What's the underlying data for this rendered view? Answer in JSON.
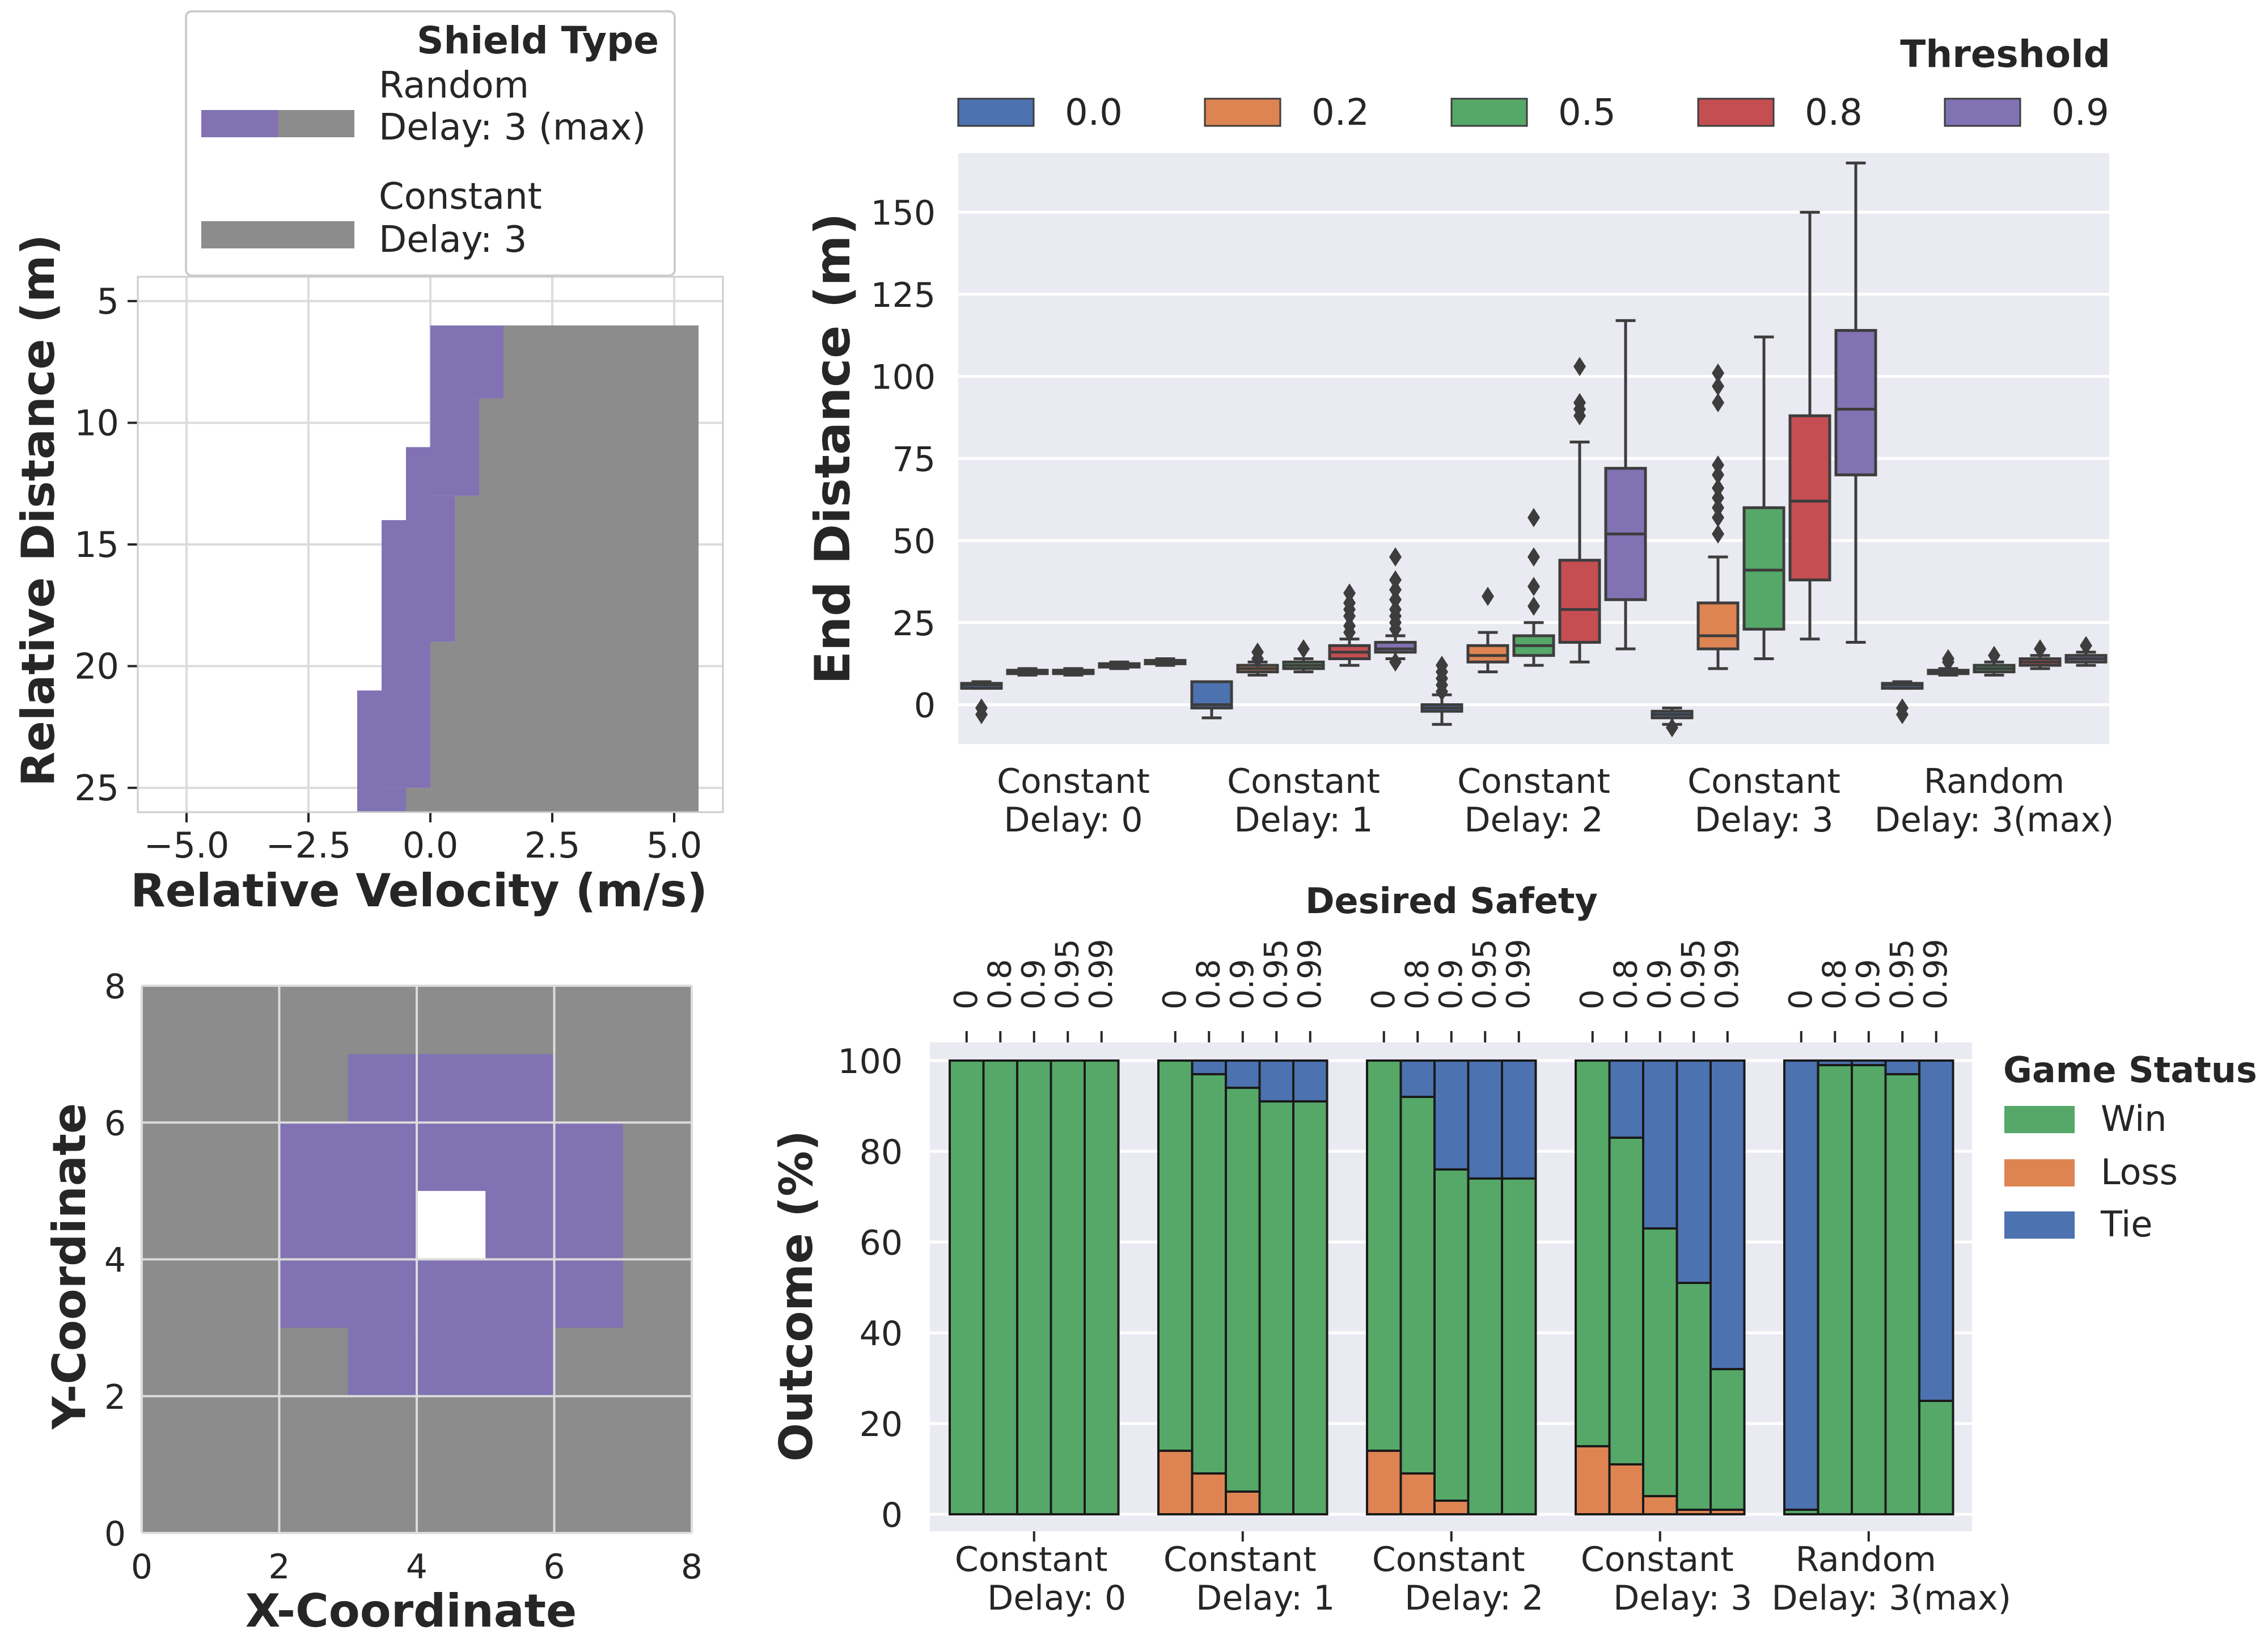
{
  "chart_data": [
    {
      "type": "heatmap",
      "subtype": "shield-region",
      "xlabel": "Relative Velocity (m/s)",
      "ylabel": "Relative Distance (m)",
      "xlim": [
        -6,
        6
      ],
      "ylim": [
        26,
        4
      ],
      "xticks": [
        -5.0,
        -2.5,
        0.0,
        2.5,
        5.0
      ],
      "xtick_labels": [
        "−5.0",
        "−2.5",
        "0.0",
        "2.5",
        "5.0"
      ],
      "yticks": [
        5,
        10,
        15,
        20,
        25
      ],
      "yticks_labels": [
        "5",
        "10",
        "15",
        "20",
        "25"
      ],
      "grid": true,
      "legend": {
        "title": "Shield Type",
        "placement": "above",
        "entries": [
          {
            "line1": "Random",
            "line2": "Delay: 3 (max)",
            "colors": [
              "#8172b3",
              "#8c8c8c"
            ]
          },
          {
            "line1": "Constant",
            "line2": "Delay: 3",
            "colors": [
              "#8c8c8c",
              "#8c8c8c"
            ]
          }
        ]
      },
      "regions": {
        "grey": [
          {
            "x": [
              1.5,
              5.5
            ],
            "y": [
              6,
              26
            ]
          },
          {
            "x": [
              1.0,
              1.5
            ],
            "y": [
              9,
              26
            ]
          },
          {
            "x": [
              0.5,
              1.0
            ],
            "y": [
              13,
              26
            ]
          },
          {
            "x": [
              0.0,
              0.5
            ],
            "y": [
              19,
              26
            ]
          },
          {
            "x": [
              -0.5,
              0.0
            ],
            "y": [
              25,
              26
            ]
          }
        ],
        "purple": [
          {
            "x": [
              0.0,
              1.5
            ],
            "y": [
              6,
              9
            ]
          },
          {
            "x": [
              0.0,
              1.0
            ],
            "y": [
              9,
              13
            ]
          },
          {
            "x": [
              0.0,
              0.5
            ],
            "y": [
              13,
              19
            ]
          },
          {
            "x": [
              -0.5,
              0.0
            ],
            "y": [
              11,
              25
            ]
          },
          {
            "x": [
              -1.0,
              -0.5
            ],
            "y": [
              14,
              25
            ]
          },
          {
            "x": [
              -1.5,
              -1.0
            ],
            "y": [
              21,
              26
            ]
          },
          {
            "x": [
              -1.0,
              -0.5
            ],
            "y": [
              25,
              26
            ]
          }
        ]
      }
    },
    {
      "type": "box",
      "ylabel": "End Distance (m)",
      "ylim": [
        -12,
        168
      ],
      "yticks": [
        0,
        25,
        50,
        75,
        100,
        125,
        150
      ],
      "categories": [
        {
          "line1": "Constant",
          "line2": "Delay: 0"
        },
        {
          "line1": "Constant",
          "line2": "Delay: 1"
        },
        {
          "line1": "Constant",
          "line2": "Delay: 2"
        },
        {
          "line1": "Constant",
          "line2": "Delay: 3"
        },
        {
          "line1": "Random",
          "line2": "Delay: 3(max)"
        }
      ],
      "legend": {
        "title": "Threshold",
        "placement": "top"
      },
      "series": [
        {
          "name": "0.0",
          "color": "#4c72b0",
          "boxes": [
            {
              "lo": 5,
              "q1": 5,
              "med": 6,
              "q3": 6.5,
              "hi": 7,
              "out": [
                -1,
                -3
              ]
            },
            {
              "lo": -4,
              "q1": -1,
              "med": 0,
              "q3": 7,
              "hi": 7,
              "out": []
            },
            {
              "lo": -6,
              "q1": -2,
              "med": -1,
              "q3": 0,
              "hi": 3,
              "out": [
                4,
                6,
                8,
                10,
                12
              ]
            },
            {
              "lo": -6,
              "q1": -4,
              "med": -3,
              "q3": -2,
              "hi": -1,
              "out": [
                -7
              ]
            },
            {
              "lo": 5,
              "q1": 5,
              "med": 6,
              "q3": 6.5,
              "hi": 7,
              "out": [
                -1,
                -3
              ]
            }
          ]
        },
        {
          "name": "0.2",
          "color": "#dd8452",
          "boxes": [
            {
              "lo": 9,
              "q1": 9.5,
              "med": 10,
              "q3": 10.5,
              "hi": 11,
              "out": []
            },
            {
              "lo": 9,
              "q1": 10,
              "med": 11,
              "q3": 12,
              "hi": 13,
              "out": [
                14,
                16
              ]
            },
            {
              "lo": 10,
              "q1": 13,
              "med": 15,
              "q3": 18,
              "hi": 22,
              "out": [
                33
              ]
            },
            {
              "lo": 11,
              "q1": 17,
              "med": 21,
              "q3": 31,
              "hi": 45,
              "out": [
                52,
                57,
                60,
                63,
                66,
                70,
                73,
                92,
                97,
                101
              ]
            },
            {
              "lo": 9,
              "q1": 9.5,
              "med": 10,
              "q3": 10.5,
              "hi": 11,
              "out": [
                13,
                14
              ]
            }
          ]
        },
        {
          "name": "0.5",
          "color": "#55a868",
          "boxes": [
            {
              "lo": 9,
              "q1": 9.5,
              "med": 10,
              "q3": 10.5,
              "hi": 11,
              "out": []
            },
            {
              "lo": 10,
              "q1": 11,
              "med": 12,
              "q3": 13,
              "hi": 14,
              "out": [
                17
              ]
            },
            {
              "lo": 12,
              "q1": 15,
              "med": 18,
              "q3": 21,
              "hi": 25,
              "out": [
                30,
                36,
                45,
                57
              ]
            },
            {
              "lo": 14,
              "q1": 23,
              "med": 41,
              "q3": 60,
              "hi": 112,
              "out": []
            },
            {
              "lo": 9,
              "q1": 10,
              "med": 11,
              "q3": 12,
              "hi": 13,
              "out": [
                15
              ]
            }
          ]
        },
        {
          "name": "0.8",
          "color": "#c44e52",
          "boxes": [
            {
              "lo": 11,
              "q1": 11.5,
              "med": 12,
              "q3": 12.5,
              "hi": 13,
              "out": []
            },
            {
              "lo": 12,
              "q1": 14,
              "med": 16,
              "q3": 18,
              "hi": 20,
              "out": [
                22,
                24,
                27,
                29,
                31,
                34
              ]
            },
            {
              "lo": 13,
              "q1": 19,
              "med": 29,
              "q3": 44,
              "hi": 80,
              "out": [
                88,
                90,
                92,
                103
              ]
            },
            {
              "lo": 20,
              "q1": 38,
              "med": 62,
              "q3": 88,
              "hi": 150,
              "out": []
            },
            {
              "lo": 11,
              "q1": 12,
              "med": 13,
              "q3": 14,
              "hi": 15,
              "out": [
                17
              ]
            }
          ]
        },
        {
          "name": "0.9",
          "color": "#8172b3",
          "boxes": [
            {
              "lo": 12,
              "q1": 12.5,
              "med": 13,
              "q3": 13.5,
              "hi": 14,
              "out": []
            },
            {
              "lo": 14,
              "q1": 16,
              "med": 17,
              "q3": 19,
              "hi": 21,
              "out": [
                13,
                23,
                25,
                27,
                29,
                32,
                35,
                38,
                45
              ]
            },
            {
              "lo": 17,
              "q1": 32,
              "med": 52,
              "q3": 72,
              "hi": 117,
              "out": []
            },
            {
              "lo": 19,
              "q1": 70,
              "med": 90,
              "q3": 114,
              "hi": 165,
              "out": []
            },
            {
              "lo": 12,
              "q1": 13,
              "med": 14,
              "q3": 15,
              "hi": 16,
              "out": [
                18
              ]
            }
          ]
        }
      ]
    },
    {
      "type": "heatmap",
      "subtype": "grid-region",
      "xlabel": "X-Coordinate",
      "ylabel": "Y-Coordinate",
      "xlim": [
        0,
        8
      ],
      "ylim": [
        0,
        8
      ],
      "xticks": [
        0,
        2,
        4,
        6,
        8
      ],
      "yticks": [
        0,
        2,
        4,
        6,
        8
      ],
      "grid": true,
      "cells": {
        "purple": [
          {
            "x": [
              3,
              6
            ],
            "y": [
              6,
              7
            ]
          },
          {
            "x": [
              2,
              7
            ],
            "y": [
              3,
              6
            ]
          },
          {
            "x": [
              3,
              6
            ],
            "y": [
              2,
              3
            ]
          }
        ],
        "white": [
          {
            "x": [
              4,
              5
            ],
            "y": [
              4,
              5
            ]
          }
        ]
      }
    },
    {
      "type": "bar",
      "subtype": "stacked",
      "ylabel": "Outcome (%)",
      "ylim": [
        0,
        100
      ],
      "yticks": [
        0,
        20,
        40,
        60,
        80,
        100
      ],
      "top_axis_title": "Desired Safety",
      "safety_levels": [
        "0",
        "0.8",
        "0.9",
        "0.95",
        "0.99"
      ],
      "categories": [
        {
          "line1": "Constant",
          "line2": "Delay: 0"
        },
        {
          "line1": "Constant",
          "line2": "Delay: 1"
        },
        {
          "line1": "Constant",
          "line2": "Delay: 2"
        },
        {
          "line1": "Constant",
          "line2": "Delay: 3"
        },
        {
          "line1": "Random",
          "line2": "Delay: 3(max)"
        }
      ],
      "legend": {
        "title": "Game Status",
        "placement": "right"
      },
      "series": [
        {
          "name": "Win",
          "color": "#55a868",
          "values": [
            [
              100,
              100,
              100,
              100,
              100
            ],
            [
              86,
              88,
              89,
              91,
              91
            ],
            [
              86,
              83,
              73,
              74,
              74
            ],
            [
              85,
              72,
              59,
              50,
              31
            ],
            [
              1,
              99,
              99,
              97,
              25
            ]
          ]
        },
        {
          "name": "Loss",
          "color": "#dd8452",
          "values": [
            [
              0,
              0,
              0,
              0,
              0
            ],
            [
              14,
              9,
              5,
              0,
              0
            ],
            [
              14,
              9,
              3,
              0,
              0
            ],
            [
              15,
              11,
              4,
              1,
              1
            ],
            [
              0,
              0,
              0,
              0,
              0
            ]
          ]
        },
        {
          "name": "Tie",
          "color": "#4c72b0",
          "values": [
            [
              0,
              0,
              0,
              0,
              0
            ],
            [
              0,
              3,
              6,
              9,
              9
            ],
            [
              0,
              8,
              24,
              26,
              26
            ],
            [
              0,
              17,
              37,
              49,
              68
            ],
            [
              99,
              1,
              1,
              3,
              75
            ]
          ]
        }
      ]
    }
  ]
}
